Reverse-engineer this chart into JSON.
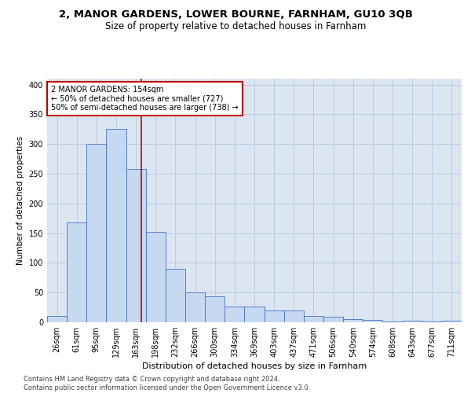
{
  "title": "2, MANOR GARDENS, LOWER BOURNE, FARNHAM, GU10 3QB",
  "subtitle": "Size of property relative to detached houses in Farnham",
  "xlabel": "Distribution of detached houses by size in Farnham",
  "ylabel": "Number of detached properties",
  "categories": [
    "26sqm",
    "61sqm",
    "95sqm",
    "129sqm",
    "163sqm",
    "198sqm",
    "232sqm",
    "266sqm",
    "300sqm",
    "334sqm",
    "369sqm",
    "403sqm",
    "437sqm",
    "471sqm",
    "506sqm",
    "540sqm",
    "574sqm",
    "608sqm",
    "643sqm",
    "677sqm",
    "711sqm"
  ],
  "values": [
    10,
    168,
    300,
    325,
    258,
    152,
    90,
    50,
    43,
    26,
    26,
    20,
    20,
    10,
    9,
    5,
    4,
    1,
    3,
    1,
    3
  ],
  "bar_color": "#c6d9f0",
  "bar_edge_color": "#4472c4",
  "grid_color": "#b8cce4",
  "background_color": "#dce6f1",
  "vline_x": 4.27,
  "vline_color": "#c00000",
  "annotation_line1": "2 MANOR GARDENS: 154sqm",
  "annotation_line2": "← 50% of detached houses are smaller (727)",
  "annotation_line3": "50% of semi-detached houses are larger (738) →",
  "annotation_box_color": "#ffffff",
  "annotation_box_edge": "#c00000",
  "footer_text": "Contains HM Land Registry data © Crown copyright and database right 2024.\nContains public sector information licensed under the Open Government Licence v3.0.",
  "ylim": [
    0,
    410
  ],
  "yticks": [
    0,
    50,
    100,
    150,
    200,
    250,
    300,
    350,
    400
  ],
  "title_fontsize": 9.5,
  "subtitle_fontsize": 8.5
}
